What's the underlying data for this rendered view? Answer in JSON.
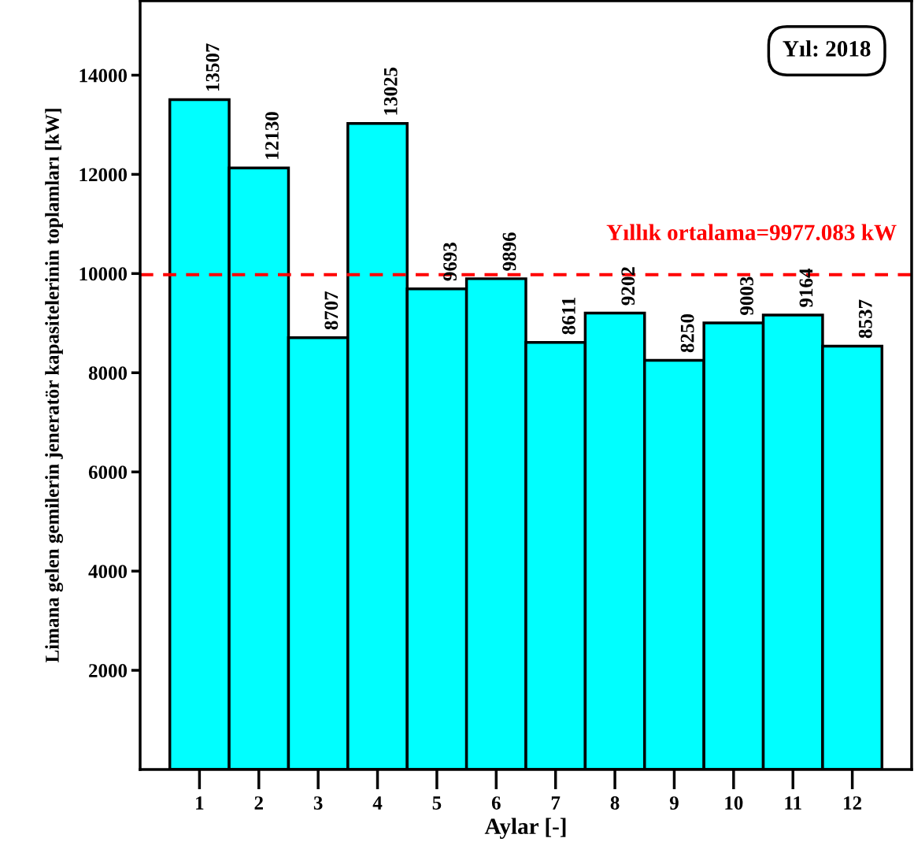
{
  "chart_data": {
    "type": "bar",
    "xlabel": "Aylar [-]",
    "ylabel": "Limana gelen gemilerin jeneratör kapasitelerinin toplamları [kW]",
    "categories": [
      "1",
      "2",
      "3",
      "4",
      "5",
      "6",
      "7",
      "8",
      "9",
      "10",
      "11",
      "12"
    ],
    "values": [
      13507,
      12130,
      8707,
      13025,
      9693,
      9896,
      8611,
      9202,
      8250,
      9003,
      9164,
      8537
    ],
    "color": "#00ffff",
    "ylim": [
      0,
      15500
    ],
    "yticks": [
      2000,
      4000,
      6000,
      8000,
      10000,
      12000,
      14000
    ],
    "data_labels": true,
    "grid": false,
    "legend": false,
    "ref_lines": [
      {
        "axis": "y",
        "value": 9977.083,
        "label": "Yıllık ortalama=9977.083 kW",
        "color": "#ff0000",
        "line_style": "dashed"
      }
    ],
    "annotations": [
      "Yıl: 2018"
    ]
  }
}
